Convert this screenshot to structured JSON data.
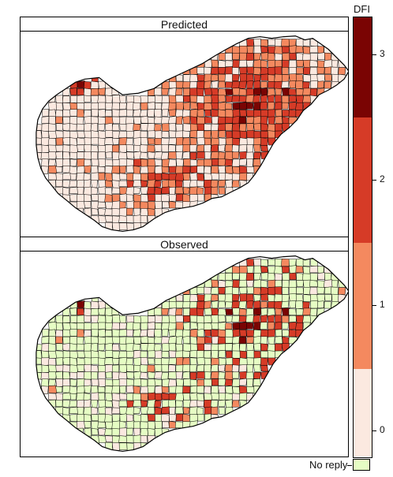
{
  "panels": [
    {
      "title": "Predicted",
      "type": "predicted"
    },
    {
      "title": "Observed",
      "type": "observed"
    }
  ],
  "legend": {
    "title": "DFI",
    "ticks": [
      "3",
      "2",
      "1",
      "0"
    ],
    "tick_values": [
      3,
      2,
      1,
      0
    ],
    "range": [
      -0.2,
      3.3
    ],
    "classes": [
      {
        "from": -0.2,
        "to": 0.5,
        "color": "#fbe9e0"
      },
      {
        "from": 0.5,
        "to": 1.5,
        "color": "#f4895f"
      },
      {
        "from": 1.5,
        "to": 2.5,
        "color": "#d63b27"
      },
      {
        "from": 2.5,
        "to": 3.3,
        "color": "#7a0403"
      }
    ],
    "no_reply_label": "No reply",
    "no_reply_color": "#e6fdc4"
  }
}
